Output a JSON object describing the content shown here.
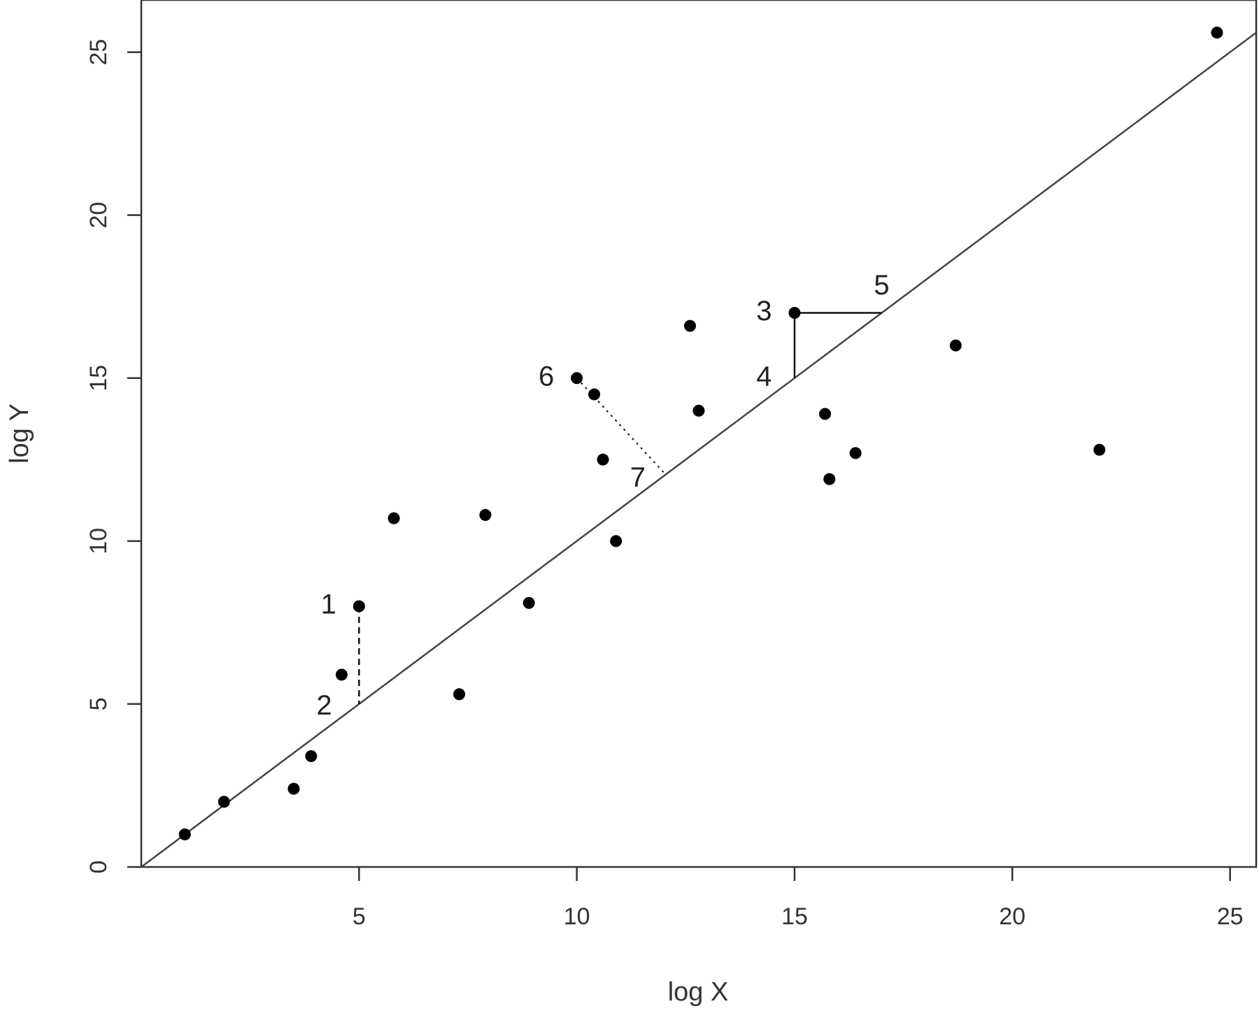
{
  "chart_data": {
    "type": "scatter",
    "title": "",
    "xlabel": "log X",
    "ylabel": "log Y",
    "xlim": [
      0,
      25.6
    ],
    "ylim": [
      0,
      26.6
    ],
    "xticks": [
      5,
      10,
      15,
      20,
      25
    ],
    "yticks": [
      0,
      5,
      10,
      15,
      20,
      25
    ],
    "grid": false,
    "series": [
      {
        "points": [
          {
            "x": 1.0,
            "y": 1.0
          },
          {
            "x": 1.9,
            "y": 2.0
          },
          {
            "x": 3.5,
            "y": 2.4
          },
          {
            "x": 3.9,
            "y": 3.4
          },
          {
            "x": 4.6,
            "y": 5.9
          },
          {
            "x": 5.0,
            "y": 8.0
          },
          {
            "x": 5.8,
            "y": 10.7
          },
          {
            "x": 7.3,
            "y": 5.3
          },
          {
            "x": 7.9,
            "y": 10.8
          },
          {
            "x": 8.9,
            "y": 8.1
          },
          {
            "x": 10.0,
            "y": 15.0
          },
          {
            "x": 10.4,
            "y": 14.5
          },
          {
            "x": 10.6,
            "y": 12.5
          },
          {
            "x": 10.9,
            "y": 10.0
          },
          {
            "x": 12.6,
            "y": 16.6
          },
          {
            "x": 12.8,
            "y": 14.0
          },
          {
            "x": 15.0,
            "y": 17.0
          },
          {
            "x": 15.7,
            "y": 13.9
          },
          {
            "x": 15.8,
            "y": 11.9
          },
          {
            "x": 16.4,
            "y": 12.7
          },
          {
            "x": 18.7,
            "y": 16.0
          },
          {
            "x": 22.0,
            "y": 12.8
          },
          {
            "x": 24.7,
            "y": 25.6
          }
        ]
      }
    ],
    "fit_line": {
      "x": [
        0,
        25.6
      ],
      "y": [
        0,
        25.6
      ]
    },
    "segments": [
      {
        "from": [
          5.0,
          8.0
        ],
        "to": [
          5.0,
          5.0
        ],
        "style": "dashed"
      },
      {
        "from": [
          15.0,
          17.0
        ],
        "to": [
          15.0,
          15.0
        ],
        "style": "solid"
      },
      {
        "from": [
          15.0,
          17.0
        ],
        "to": [
          17.0,
          17.0
        ],
        "style": "solid"
      },
      {
        "from": [
          10.0,
          15.0
        ],
        "to": [
          12.0,
          12.1
        ],
        "style": "dotted"
      }
    ],
    "annotations": [
      {
        "text": "1",
        "x": 4.3,
        "y": 8.0
      },
      {
        "text": "2",
        "x": 4.2,
        "y": 4.9
      },
      {
        "text": "3",
        "x": 14.3,
        "y": 17.0
      },
      {
        "text": "4",
        "x": 14.3,
        "y": 15.0
      },
      {
        "text": "5",
        "x": 17.0,
        "y": 17.8
      },
      {
        "text": "6",
        "x": 9.3,
        "y": 15.0
      },
      {
        "text": "7",
        "x": 11.4,
        "y": 11.9
      }
    ]
  }
}
